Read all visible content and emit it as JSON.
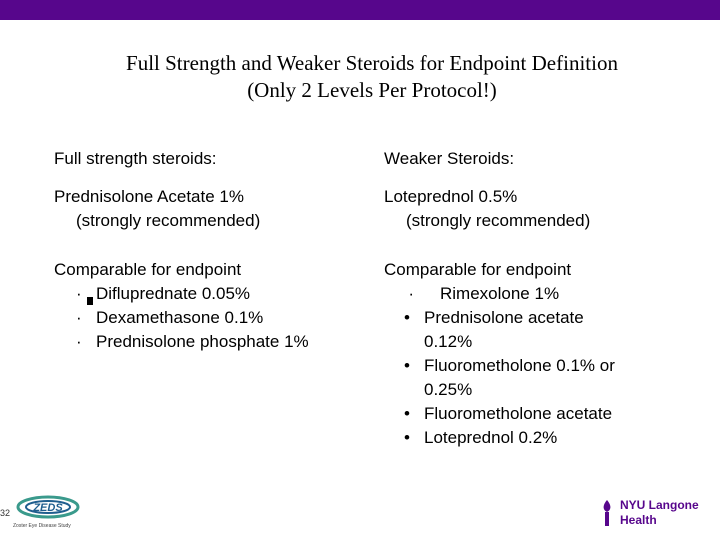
{
  "colors": {
    "accent": "#57068c",
    "zeds_blue": "#1f5e8e",
    "zeds_green": "#3a9a8c"
  },
  "title": {
    "line1": "Full Strength and Weaker Steroids for Endpoint Definition",
    "line2": "(Only 2 Levels Per Protocol!)"
  },
  "left": {
    "header": "Full strength steroids:",
    "primary_line1": "Prednisolone Acetate 1%",
    "primary_line2": "(strongly recommended)",
    "comparable_label": "Comparable for endpoint",
    "items": [
      {
        "bullet": "·",
        "text": "Difluprednate 0.05%"
      },
      {
        "bullet": "·",
        "text": "Dexamethasone 0.1%"
      },
      {
        "bullet": "·",
        "text": "Prednisolone phosphate 1%"
      }
    ]
  },
  "right": {
    "header": "Weaker Steroids:",
    "primary_line1": "Loteprednol 0.5%",
    "primary_line2": "(strongly recommended)",
    "comparable_label": "Comparable for endpoint",
    "items": [
      {
        "bullet": "·",
        "line1": "Rimexolone 1%",
        "line2": ""
      },
      {
        "bullet": "•",
        "line1": "Prednisolone acetate",
        "line2": "0.12%"
      },
      {
        "bullet": "•",
        "line1": "Fluorometholone 0.1% or",
        "line2": "0.25%"
      },
      {
        "bullet": "•",
        "line1": "Fluorometholone acetate",
        "line2": ""
      },
      {
        "bullet": "•",
        "line1": "Loteprednol 0.2%",
        "line2": ""
      }
    ]
  },
  "footer": {
    "slide_number": "32",
    "zeds_logo_text": "ZEDS",
    "zeds_subtitle": "Zoster Eye Disease Study",
    "nyu_line1": "NYU Langone",
    "nyu_line2": "Health"
  }
}
